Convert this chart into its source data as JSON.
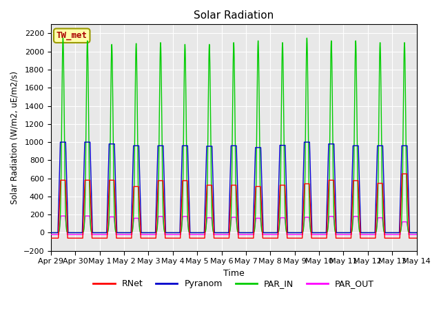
{
  "title": "Solar Radiation",
  "ylabel": "Solar Radiation (W/m2, uE/m2/s)",
  "xlabel": "Time",
  "ylim": [
    -200,
    2300
  ],
  "yticks": [
    -200,
    0,
    200,
    400,
    600,
    800,
    1000,
    1200,
    1400,
    1600,
    1800,
    2000,
    2200
  ],
  "colors": {
    "RNet": "#ff0000",
    "Pyranom": "#0000cc",
    "PAR_IN": "#00cc00",
    "PAR_OUT": "#ff00ff"
  },
  "station_label": "TW_met",
  "station_label_color": "#aa0000",
  "station_box_facecolor": "#ffffaa",
  "station_box_edgecolor": "#999900",
  "num_days": 15,
  "tick_labels": [
    "Apr 29",
    "Apr 30",
    "May 1",
    "May 2",
    "May 3",
    "May 4",
    "May 5",
    "May 6",
    "May 7",
    "May 8",
    "May 9",
    "May 10",
    "May 11",
    "May 12",
    "May 13",
    "May 14"
  ],
  "plot_bg": "#e8e8e8",
  "fig_bg": "#ffffff",
  "grid_color": "#ffffff",
  "par_in_peaks": [
    2150,
    2120,
    2080,
    2090,
    2100,
    2080,
    2080,
    2100,
    2120,
    2100,
    2150,
    2120,
    2120,
    2100,
    2100
  ],
  "pyranom_peaks": [
    1000,
    1000,
    980,
    960,
    960,
    960,
    955,
    960,
    940,
    965,
    1000,
    980,
    960,
    960,
    960
  ],
  "rnet_peaks": [
    580,
    580,
    580,
    510,
    575,
    575,
    525,
    525,
    510,
    525,
    540,
    580,
    575,
    545,
    650
  ],
  "par_out_peaks": [
    185,
    185,
    175,
    160,
    180,
    180,
    165,
    170,
    160,
    165,
    170,
    180,
    180,
    165,
    120
  ],
  "rnet_night": -60,
  "par_out_night": -20,
  "pts_per_day": 288
}
